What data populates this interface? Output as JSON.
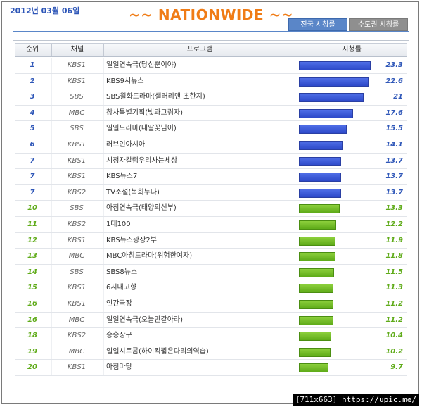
{
  "header": {
    "date": "2012년 03월 06일",
    "title": "~~ NATIONWIDE ~~",
    "tabs": [
      {
        "label": "전국 시청률",
        "active": true
      },
      {
        "label": "수도권 시청률",
        "active": false
      }
    ]
  },
  "table": {
    "columns": [
      "순위",
      "채널",
      "프로그램",
      "시청률"
    ],
    "max_value": 23.3,
    "rows": [
      {
        "rank": "1",
        "channel": "KBS1",
        "program": "일일연속극(당신뿐이야)",
        "rating": "23.3",
        "value": 23.3,
        "color": "blue"
      },
      {
        "rank": "2",
        "channel": "KBS1",
        "program": "KBS9시뉴스",
        "rating": "22.6",
        "value": 22.6,
        "color": "blue"
      },
      {
        "rank": "3",
        "channel": "SBS",
        "program": "SBS월화드라마(샐러리맨 초한지)",
        "rating": "21",
        "value": 21,
        "color": "blue"
      },
      {
        "rank": "4",
        "channel": "MBC",
        "program": "창사특별기획(빛과그림자)",
        "rating": "17.6",
        "value": 17.6,
        "color": "blue"
      },
      {
        "rank": "5",
        "channel": "SBS",
        "program": "일일드라마(내딸꽃님이)",
        "rating": "15.5",
        "value": 15.5,
        "color": "blue"
      },
      {
        "rank": "6",
        "channel": "KBS1",
        "program": "러브인아시아",
        "rating": "14.1",
        "value": 14.1,
        "color": "blue"
      },
      {
        "rank": "7",
        "channel": "KBS1",
        "program": "시청자칼럼우리사는세상",
        "rating": "13.7",
        "value": 13.7,
        "color": "blue"
      },
      {
        "rank": "7",
        "channel": "KBS1",
        "program": "KBS뉴스7",
        "rating": "13.7",
        "value": 13.7,
        "color": "blue"
      },
      {
        "rank": "7",
        "channel": "KBS2",
        "program": "TV소설(복희누나)",
        "rating": "13.7",
        "value": 13.7,
        "color": "blue"
      },
      {
        "rank": "10",
        "channel": "SBS",
        "program": "아침연속극(태양의신부)",
        "rating": "13.3",
        "value": 13.3,
        "color": "green"
      },
      {
        "rank": "11",
        "channel": "KBS2",
        "program": "1대100",
        "rating": "12.2",
        "value": 12.2,
        "color": "green"
      },
      {
        "rank": "12",
        "channel": "KBS1",
        "program": "KBS뉴스광장2부",
        "rating": "11.9",
        "value": 11.9,
        "color": "green"
      },
      {
        "rank": "13",
        "channel": "MBC",
        "program": "MBC아침드라마(위험한여자)",
        "rating": "11.8",
        "value": 11.8,
        "color": "green"
      },
      {
        "rank": "14",
        "channel": "SBS",
        "program": "SBS8뉴스",
        "rating": "11.5",
        "value": 11.5,
        "color": "green"
      },
      {
        "rank": "15",
        "channel": "KBS1",
        "program": "6시내고향",
        "rating": "11.3",
        "value": 11.3,
        "color": "green"
      },
      {
        "rank": "16",
        "channel": "KBS1",
        "program": "인간극장",
        "rating": "11.2",
        "value": 11.2,
        "color": "green"
      },
      {
        "rank": "16",
        "channel": "MBC",
        "program": "일일연속극(오늘만같아라)",
        "rating": "11.2",
        "value": 11.2,
        "color": "green"
      },
      {
        "rank": "18",
        "channel": "KBS2",
        "program": "승승장구",
        "rating": "10.4",
        "value": 10.4,
        "color": "green"
      },
      {
        "rank": "19",
        "channel": "MBC",
        "program": "일일시트콤(하이킥짧은다리의역습)",
        "rating": "10.2",
        "value": 10.2,
        "color": "green"
      },
      {
        "rank": "20",
        "channel": "KBS1",
        "program": "아침마당",
        "rating": "9.7",
        "value": 9.7,
        "color": "green"
      }
    ]
  },
  "watermark": "[711x663] https://upic.me/"
}
